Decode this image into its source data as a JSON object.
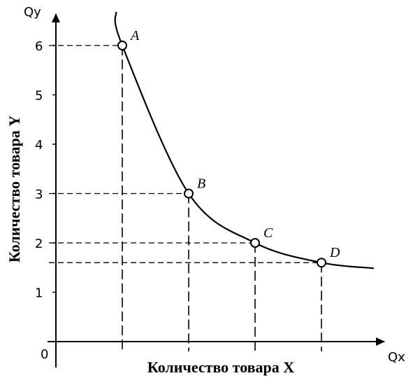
{
  "chart_data": {
    "type": "line",
    "title": "",
    "xlabel": "Количество товара X",
    "ylabel": "Количество товара Y",
    "x_axis_name": "Qx",
    "y_axis_name": "Qy",
    "origin_label": "0",
    "y_ticks": [
      1,
      2,
      3,
      4,
      5,
      6
    ],
    "ylim": [
      0,
      6.6
    ],
    "grid": false,
    "series": [
      {
        "points": [
          {
            "label": "A",
            "x": 1,
            "y": 6
          },
          {
            "label": "B",
            "x": 2,
            "y": 3
          },
          {
            "label": "C",
            "x": 3,
            "y": 2
          },
          {
            "label": "D",
            "x": 4,
            "y": 1.6
          }
        ]
      }
    ]
  }
}
